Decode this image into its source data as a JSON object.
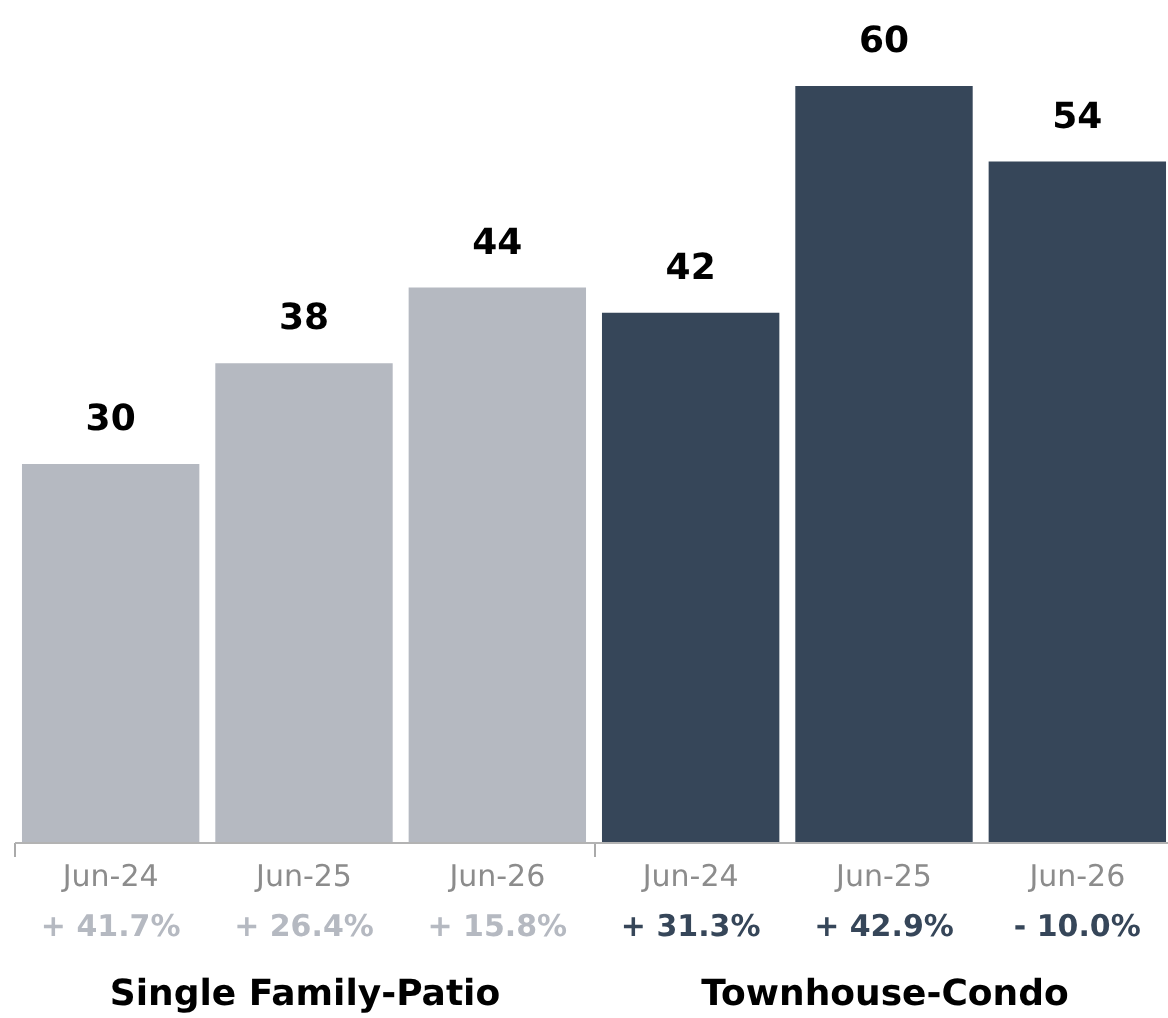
{
  "chart_data": {
    "type": "bar",
    "categories": [
      "Jun-24",
      "Jun-25",
      "Jun-26",
      "Jun-24",
      "Jun-25",
      "Jun-26"
    ],
    "series": [
      {
        "color": "#b5b9c1",
        "values": [
          30,
          38,
          44,
          null,
          null,
          null
        ]
      },
      {
        "color": "#364659",
        "values": [
          null,
          null,
          null,
          42,
          60,
          54
        ]
      }
    ],
    "data_labels": true,
    "annotations": [
      "+ 41.7%",
      "+ 26.4%",
      "+ 15.8%",
      "+ 31.3%",
      "+ 42.9%",
      "- 10.0%",
      "Single Family-Patio",
      "Townhouse-Condo"
    ],
    "legend": false
  }
}
